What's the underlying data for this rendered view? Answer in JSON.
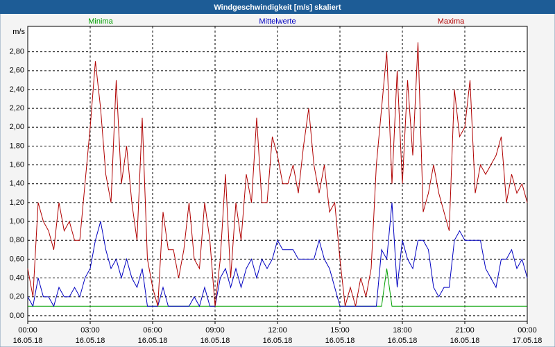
{
  "chart_data": {
    "type": "line",
    "title": "Windgeschwindigkeit [m/s] skaliert",
    "y_label": "m/s",
    "x": [
      0,
      0.25,
      0.5,
      0.75,
      1,
      1.25,
      1.5,
      1.75,
      2,
      2.25,
      2.5,
      2.75,
      3,
      3.25,
      3.5,
      3.75,
      4,
      4.25,
      4.5,
      4.75,
      5,
      5.25,
      5.5,
      5.75,
      6,
      6.25,
      6.5,
      6.75,
      7,
      7.25,
      7.5,
      7.75,
      8,
      8.25,
      8.5,
      8.75,
      9,
      9.25,
      9.5,
      9.75,
      10,
      10.25,
      10.5,
      10.75,
      11,
      11.25,
      11.5,
      11.75,
      12,
      12.25,
      12.5,
      12.75,
      13,
      13.25,
      13.5,
      13.75,
      14,
      14.25,
      14.5,
      14.75,
      15,
      15.25,
      15.5,
      15.75,
      16,
      16.25,
      16.5,
      16.75,
      17,
      17.25,
      17.5,
      17.75,
      18,
      18.25,
      18.5,
      18.75,
      19,
      19.25,
      19.5,
      19.75,
      20,
      20.25,
      20.5,
      20.75,
      21,
      21.25,
      21.5,
      21.75,
      22,
      22.25,
      22.5,
      22.75,
      23,
      23.25,
      23.5,
      23.75,
      24
    ],
    "series": [
      {
        "name": "Minima",
        "color": "#00a000",
        "values": [
          0.1,
          0.1,
          0.1,
          0.1,
          0.1,
          0.1,
          0.1,
          0.1,
          0.1,
          0.1,
          0.1,
          0.1,
          0.1,
          0.1,
          0.1,
          0.1,
          0.1,
          0.1,
          0.1,
          0.1,
          0.1,
          0.1,
          0.1,
          0.1,
          0.1,
          0.1,
          0.1,
          0.1,
          0.1,
          0.1,
          0.1,
          0.1,
          0.1,
          0.1,
          0.1,
          0.1,
          0.1,
          0.1,
          0.1,
          0.1,
          0.1,
          0.1,
          0.1,
          0.1,
          0.1,
          0.1,
          0.1,
          0.1,
          0.1,
          0.1,
          0.1,
          0.1,
          0.1,
          0.1,
          0.1,
          0.1,
          0.1,
          0.1,
          0.1,
          0.1,
          0.1,
          0.1,
          0.1,
          0.1,
          0.1,
          0.1,
          0.1,
          0.1,
          0.1,
          0.5,
          0.1,
          0.1,
          0.1,
          0.1,
          0.1,
          0.1,
          0.1,
          0.1,
          0.1,
          0.1,
          0.1,
          0.1,
          0.1,
          0.1,
          0.1,
          0.1,
          0.1,
          0.1,
          0.1,
          0.1,
          0.1,
          0.1,
          0.1,
          0.1,
          0.1,
          0.1,
          0.1
        ]
      },
      {
        "name": "Mittelwerte",
        "color": "#0000c0",
        "values": [
          0.2,
          0.1,
          0.4,
          0.2,
          0.2,
          0.1,
          0.3,
          0.2,
          0.2,
          0.3,
          0.2,
          0.4,
          0.5,
          0.8,
          1.0,
          0.7,
          0.5,
          0.6,
          0.4,
          0.6,
          0.4,
          0.3,
          0.5,
          0.1,
          0.1,
          0.1,
          0.3,
          0.1,
          0.1,
          0.1,
          0.1,
          0.1,
          0.2,
          0.1,
          0.3,
          0.1,
          0.1,
          0.4,
          0.5,
          0.3,
          0.5,
          0.3,
          0.5,
          0.6,
          0.4,
          0.6,
          0.5,
          0.6,
          0.8,
          0.7,
          0.7,
          0.7,
          0.6,
          0.6,
          0.6,
          0.6,
          0.8,
          0.6,
          0.5,
          0.3,
          0.1,
          0.1,
          0.1,
          0.1,
          0.1,
          0.1,
          0.1,
          0.1,
          0.7,
          0.6,
          1.2,
          0.3,
          0.8,
          0.6,
          0.5,
          0.8,
          0.8,
          0.7,
          0.3,
          0.2,
          0.3,
          0.3,
          0.8,
          0.9,
          0.8,
          0.8,
          0.8,
          0.8,
          0.5,
          0.4,
          0.3,
          0.6,
          0.6,
          0.7,
          0.5,
          0.6,
          0.4
        ]
      },
      {
        "name": "Maxima",
        "color": "#b00000",
        "values": [
          0.5,
          0.2,
          1.2,
          1.0,
          0.9,
          0.7,
          1.2,
          0.9,
          1.0,
          0.8,
          0.8,
          1.4,
          2.0,
          2.7,
          2.2,
          1.5,
          1.2,
          2.5,
          1.4,
          1.8,
          1.2,
          0.8,
          2.1,
          0.6,
          0.3,
          0.1,
          1.1,
          0.7,
          0.7,
          0.4,
          0.7,
          1.2,
          0.6,
          0.5,
          1.2,
          0.8,
          0.1,
          0.6,
          1.5,
          0.4,
          1.2,
          0.8,
          1.5,
          1.2,
          2.1,
          1.2,
          1.2,
          1.9,
          1.7,
          1.4,
          1.4,
          1.6,
          1.3,
          1.8,
          2.2,
          1.6,
          1.3,
          1.6,
          1.1,
          1.2,
          0.6,
          0.1,
          0.3,
          0.1,
          0.4,
          0.2,
          0.5,
          1.6,
          2.2,
          2.8,
          1.4,
          2.6,
          1.4,
          2.5,
          1.7,
          2.9,
          1.1,
          1.3,
          1.6,
          1.3,
          1.1,
          0.9,
          2.4,
          1.9,
          2.0,
          2.5,
          1.3,
          1.6,
          1.5,
          1.6,
          1.7,
          1.9,
          1.2,
          1.5,
          1.3,
          1.4,
          1.2
        ]
      }
    ],
    "xlim": [
      0,
      24
    ],
    "xticks": [
      {
        "value": 0,
        "label": "00:00 16.05.18"
      },
      {
        "value": 3,
        "label": "03:00 16.05.18"
      },
      {
        "value": 6,
        "label": "06:00 16.05.18"
      },
      {
        "value": 9,
        "label": "09:00 16.05.18"
      },
      {
        "value": 12,
        "label": "12:00 16.05.18"
      },
      {
        "value": 15,
        "label": "15:00 16.05.18"
      },
      {
        "value": 18,
        "label": "18:00 16.05.18"
      },
      {
        "value": 21,
        "label": "21:00 16.05.18"
      },
      {
        "value": 24,
        "label": "00:00 17.05.18"
      }
    ],
    "ylim": [
      -0.06,
      3.07
    ],
    "yticks": [
      {
        "value": 0,
        "label": "0,00"
      },
      {
        "value": 0.2,
        "label": "0,20"
      },
      {
        "value": 0.4,
        "label": "0,40"
      },
      {
        "value": 0.6,
        "label": "0,60"
      },
      {
        "value": 0.8,
        "label": "0,80"
      },
      {
        "value": 1.0,
        "label": "1,00"
      },
      {
        "value": 1.2,
        "label": "1,20"
      },
      {
        "value": 1.4,
        "label": "1,40"
      },
      {
        "value": 1.6,
        "label": "1,60"
      },
      {
        "value": 1.8,
        "label": "1,80"
      },
      {
        "value": 2.0,
        "label": "2,00"
      },
      {
        "value": 2.2,
        "label": "2,20"
      },
      {
        "value": 2.4,
        "label": "2,40"
      },
      {
        "value": 2.6,
        "label": "2,60"
      },
      {
        "value": 2.8,
        "label": "2,80"
      }
    ],
    "grid": true,
    "legend": "top"
  }
}
